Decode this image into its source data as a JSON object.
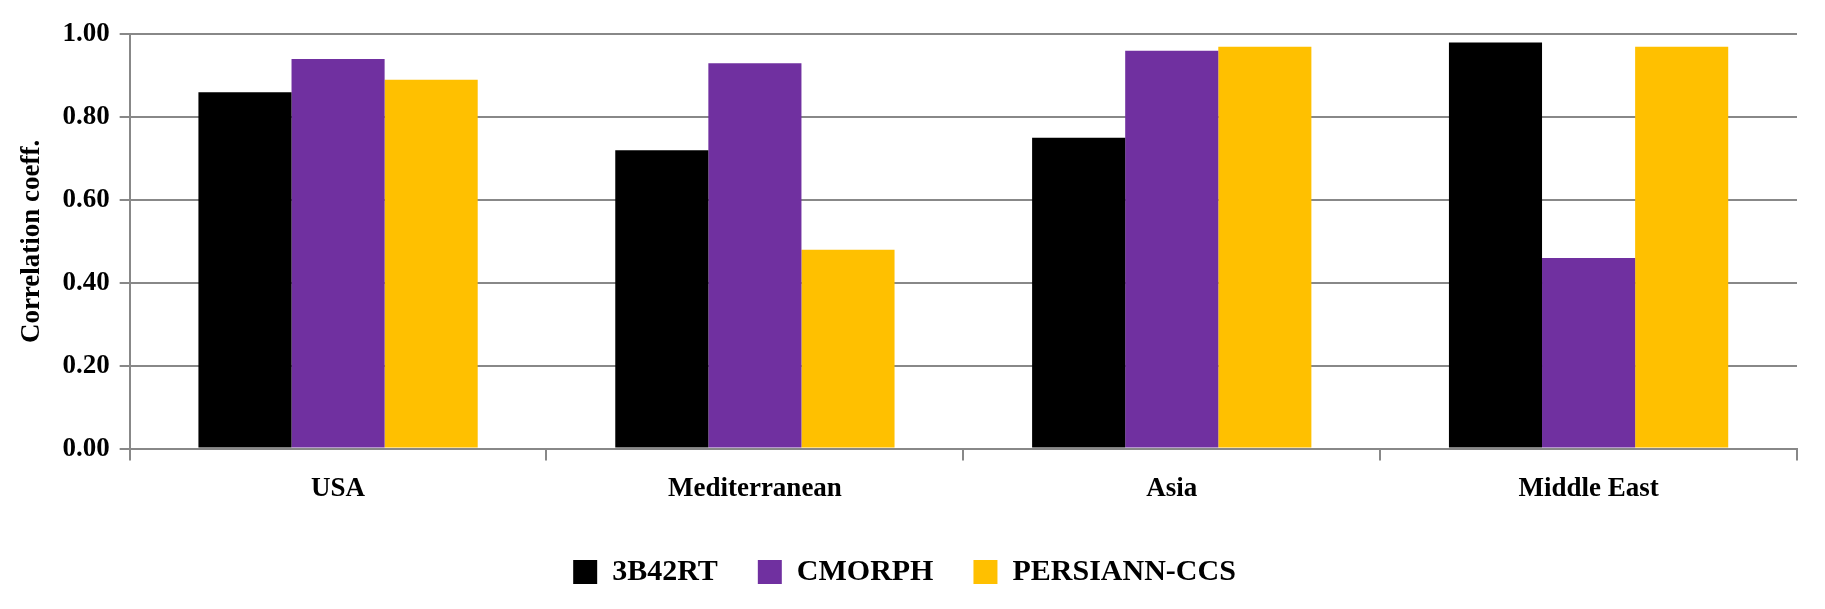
{
  "chart_data": {
    "type": "bar",
    "ylabel": "Correlation coeff.",
    "categories": [
      "USA",
      "Mediterranean",
      "Asia",
      "Middle East"
    ],
    "series": [
      {
        "name": "3B42RT",
        "color": "#000000",
        "values": [
          0.86,
          0.72,
          0.75,
          0.98
        ]
      },
      {
        "name": "CMORPH",
        "color": "#7030a0",
        "values": [
          0.94,
          0.93,
          0.96,
          0.46
        ]
      },
      {
        "name": "PERSIANN-CCS",
        "color": "#ffc000",
        "values": [
          0.89,
          0.48,
          0.97,
          0.97
        ]
      }
    ],
    "ylim": [
      0,
      1
    ],
    "yticks": [
      {
        "value": 0,
        "label": "0.00"
      },
      {
        "value": 0.2,
        "label": "0.20"
      },
      {
        "value": 0.4,
        "label": "0.40"
      },
      {
        "value": 0.6,
        "label": "0.60"
      },
      {
        "value": 0.8,
        "label": "0.80"
      },
      {
        "value": 1,
        "label": "1.00"
      }
    ],
    "grid": "y",
    "legend": "bottom"
  }
}
